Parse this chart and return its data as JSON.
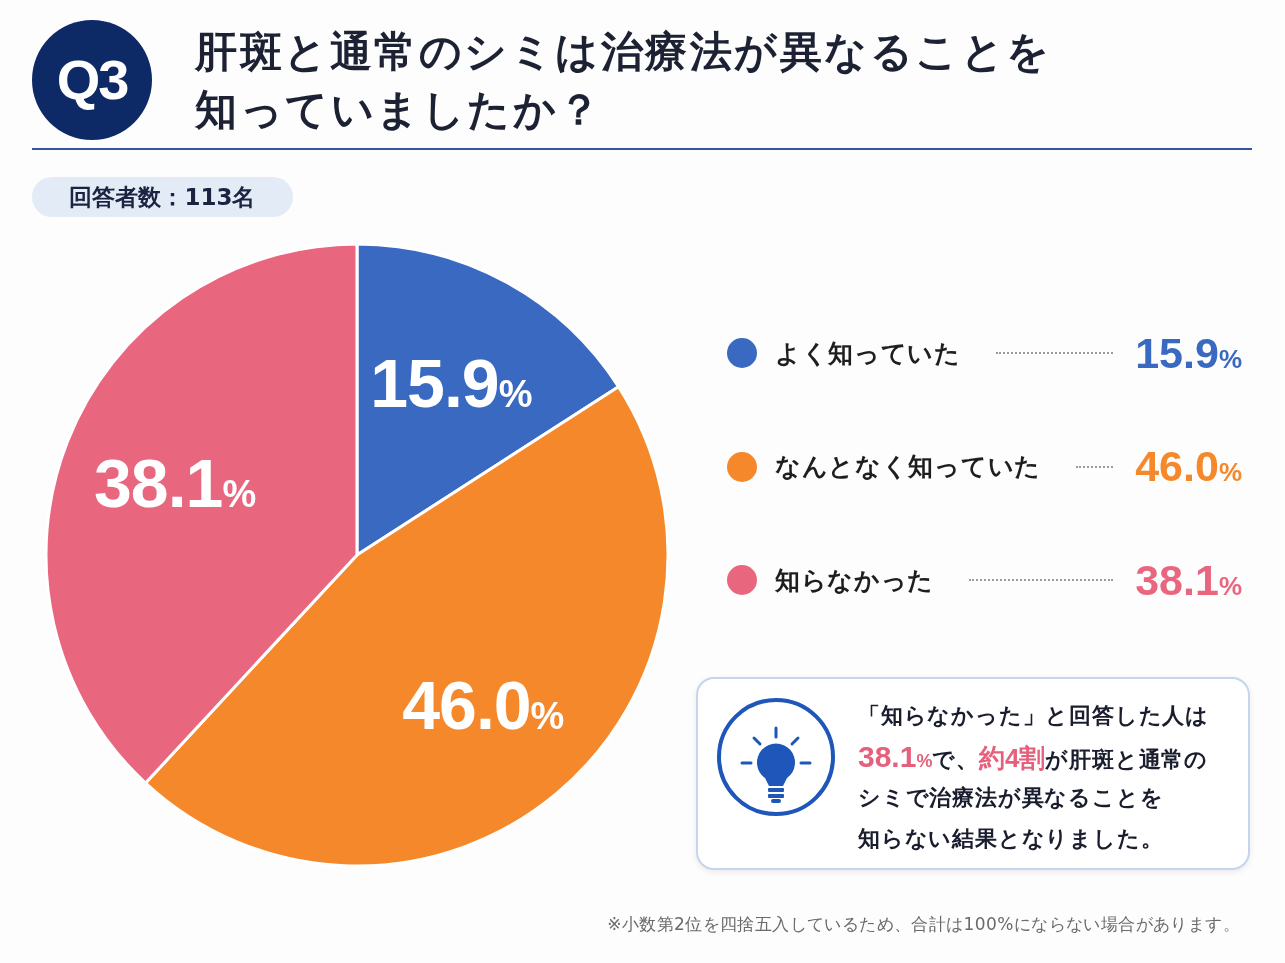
{
  "chart_data": {
    "type": "pie",
    "title": "肝斑と通常のシミは治療法が異なることを知っていましたか？",
    "subtitle": "回答者数：113名",
    "categories": [
      "よく知っていた",
      "なんとなく知っていた",
      "知らなかった"
    ],
    "values": [
      15.9,
      46.0,
      38.1
    ],
    "colors": [
      "#3a69c2",
      "#f5882a",
      "#e9667f"
    ],
    "value_labels": [
      "15.9%",
      "46.0%",
      "38.1%"
    ],
    "legend": "right",
    "annotations": [
      "Q3",
      "「知らなかった」と回答した人は",
      "38.1%",
      "で、",
      "約4割",
      "が肝斑と通常の",
      "シミで治療法が異なることを",
      "知らない結果となりました。",
      "※小数第2位を四捨五入しているため、合計は100%にならない場合があります。"
    ]
  }
}
